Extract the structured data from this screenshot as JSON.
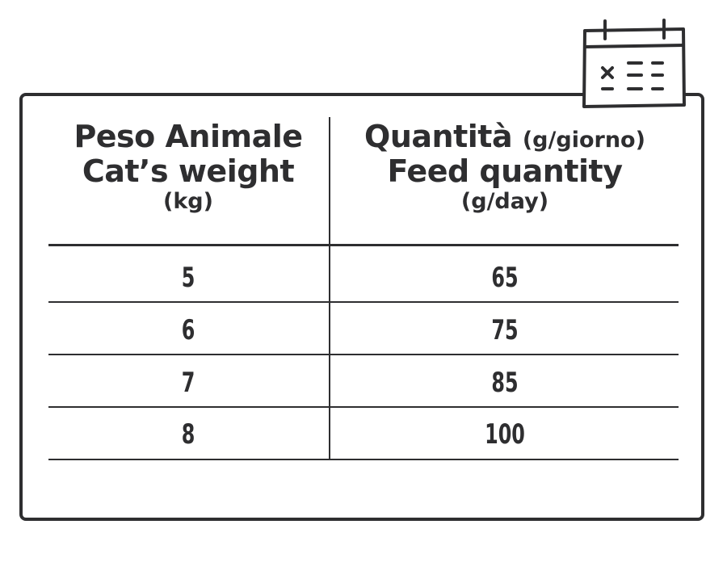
{
  "icon": "calendar-schedule-icon",
  "table": {
    "header_left": {
      "line1": "Peso Animale",
      "line2": "Cat’s weight",
      "unit": "(kg)"
    },
    "header_right": {
      "line1_main": "Quantità",
      "line1_unit": "(g/giorno)",
      "line2": "Feed quantity",
      "unit": "(g/day)"
    },
    "rows": [
      {
        "weight": "5",
        "quantity": "65"
      },
      {
        "weight": "6",
        "quantity": "75"
      },
      {
        "weight": "7",
        "quantity": "85"
      },
      {
        "weight": "8",
        "quantity": "100"
      }
    ]
  }
}
